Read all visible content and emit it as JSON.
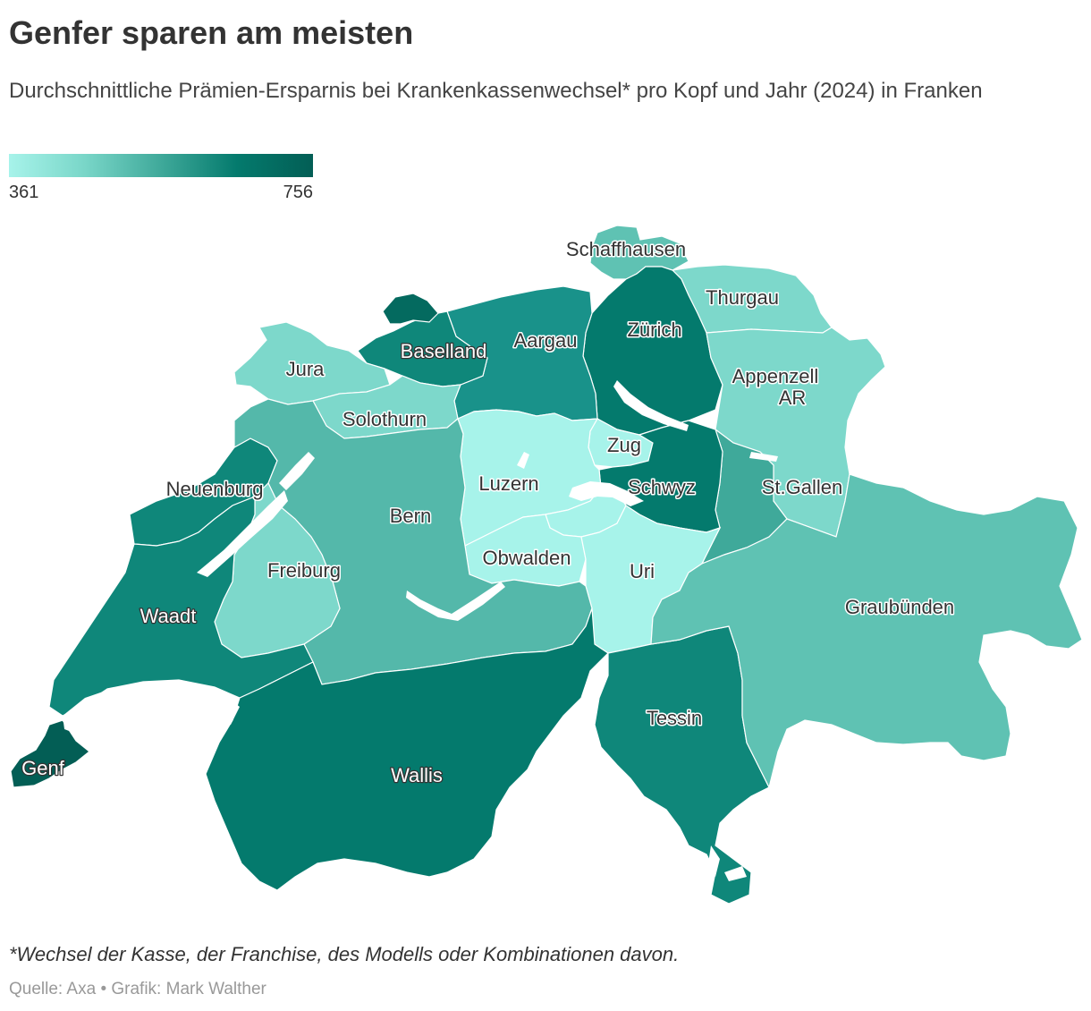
{
  "title": "Genfer sparen am meisten",
  "subtitle": "Durchschnittliche Prämien-Ersparnis bei Krankenkassenwechsel* pro Kopf und Jahr (2024) in Franken",
  "legend": {
    "min": "361",
    "max": "756",
    "colors": [
      "#a7f3ea",
      "#79d6c8",
      "#3fa99a",
      "#047a6d",
      "#035e55"
    ]
  },
  "colors": {
    "lake": "#ffffff",
    "border": "#ffffff"
  },
  "cantons": [
    {
      "id": "schaffhausen",
      "label": "Schaffhausen",
      "color": "#5fc2b3"
    },
    {
      "id": "thurgau",
      "label": "Thurgau",
      "color": "#7dd8cb"
    },
    {
      "id": "zuerich",
      "label": "Zürich",
      "color": "#047a6d"
    },
    {
      "id": "aargau",
      "label": "Aargau",
      "color": "#19928a"
    },
    {
      "id": "baselland",
      "label": "Baselland",
      "color": "#0f877a"
    },
    {
      "id": "basel-stadt",
      "label": "",
      "color": "#046a5f"
    },
    {
      "id": "jura",
      "label": "Jura",
      "color": "#7dd8cb"
    },
    {
      "id": "solothurn",
      "label": "Solothurn",
      "color": "#7dd8cb"
    },
    {
      "id": "appenzell-ar",
      "label": "Appenzell AR",
      "color": "#a7f3ea"
    },
    {
      "id": "appenzell-ir",
      "label": "",
      "color": "#5fc2b3"
    },
    {
      "id": "st-gallen",
      "label": "St.Gallen",
      "color": "#7dd8cb"
    },
    {
      "id": "glarus",
      "label": "",
      "color": "#3fa99a"
    },
    {
      "id": "zug",
      "label": "Zug",
      "color": "#a7f3ea"
    },
    {
      "id": "schwyz",
      "label": "Schwyz",
      "color": "#047a6d"
    },
    {
      "id": "luzern",
      "label": "Luzern",
      "color": "#a7f3ea"
    },
    {
      "id": "nidwalden",
      "label": "",
      "color": "#a7f3ea"
    },
    {
      "id": "obwalden",
      "label": "Obwalden",
      "color": "#a7f3ea"
    },
    {
      "id": "uri",
      "label": "Uri",
      "color": "#a7f3ea"
    },
    {
      "id": "neuenburg",
      "label": "Neuenburg",
      "color": "#0f877a"
    },
    {
      "id": "bern",
      "label": "Bern",
      "color": "#54b8aa"
    },
    {
      "id": "freiburg",
      "label": "Freiburg",
      "color": "#7dd8cb"
    },
    {
      "id": "waadt",
      "label": "Waadt",
      "color": "#0f877a"
    },
    {
      "id": "genf",
      "label": "Genf",
      "color": "#035e55"
    },
    {
      "id": "wallis",
      "label": "Wallis",
      "color": "#047a6d"
    },
    {
      "id": "tessin",
      "label": "Tessin",
      "color": "#0f877a"
    },
    {
      "id": "graubuenden",
      "label": "Graubünden",
      "color": "#5fc2b3"
    }
  ],
  "footnote": "*Wechsel der Kasse, der Franchise, des Modells oder Kombinationen davon.",
  "source": "Quelle: Axa • Grafik: Mark Walther"
}
